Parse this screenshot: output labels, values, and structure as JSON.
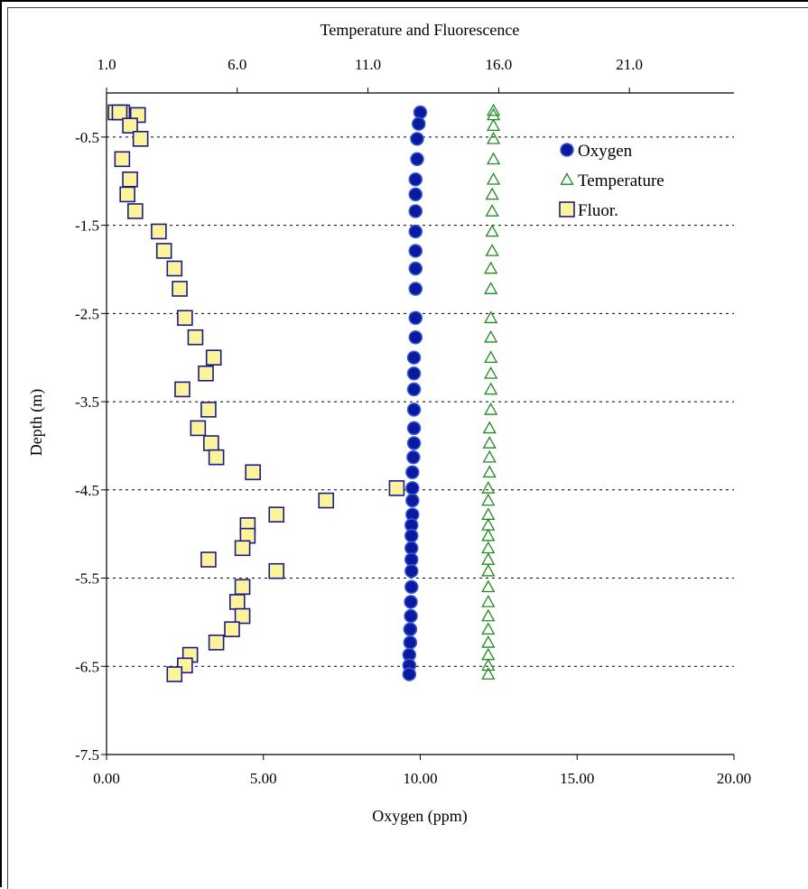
{
  "chart_data": {
    "type": "scatter",
    "title": "",
    "top_axis_label": "Temperature and Fluorescence",
    "xlabel": "Oxygen (ppm)",
    "ylabel": "Depth (m)",
    "xlim": [
      0,
      20
    ],
    "top_xlim": [
      1,
      25
    ],
    "ylim": [
      -7.5,
      0
    ],
    "x_ticks": [
      "0.00",
      "5.00",
      "10.00",
      "15.00",
      "20.00"
    ],
    "top_x_ticks": [
      "1.0",
      "6.0",
      "11.0",
      "16.0",
      "21.0"
    ],
    "y_ticks": [
      "-0.5",
      "-1.5",
      "-2.5",
      "-3.5",
      "-4.5",
      "-5.5",
      "-6.5",
      "-7.5"
    ],
    "gridlines": "horizontal dotted at -0.5, -1.5, -2.5, -3.5, -4.5, -5.5, -6.5",
    "legend_position": "top-right",
    "colors": {
      "oxygen": "#0a1a9e",
      "temperature": "#1e8a1e",
      "fluor_fill": "#fbf49a",
      "fluor_edge": "#1a1a8c"
    },
    "series": [
      {
        "name": "Oxygen",
        "axis": "bottom",
        "marker": "circle",
        "points": [
          [
            10.0,
            -0.22
          ],
          [
            9.95,
            -0.35
          ],
          [
            9.9,
            -0.52
          ],
          [
            9.9,
            -0.75
          ],
          [
            9.85,
            -0.98
          ],
          [
            9.85,
            -1.15
          ],
          [
            9.85,
            -1.34
          ],
          [
            9.85,
            -1.57
          ],
          [
            9.85,
            -1.79
          ],
          [
            9.85,
            -1.99
          ],
          [
            9.85,
            -2.22
          ],
          [
            9.85,
            -2.55
          ],
          [
            9.85,
            -2.77
          ],
          [
            9.8,
            -3.0
          ],
          [
            9.8,
            -3.18
          ],
          [
            9.8,
            -3.36
          ],
          [
            9.8,
            -3.59
          ],
          [
            9.8,
            -3.8
          ],
          [
            9.8,
            -3.97
          ],
          [
            9.78,
            -4.13
          ],
          [
            9.75,
            -4.3
          ],
          [
            9.75,
            -4.48
          ],
          [
            9.75,
            -4.62
          ],
          [
            9.75,
            -4.78
          ],
          [
            9.72,
            -4.9
          ],
          [
            9.72,
            -5.02
          ],
          [
            9.72,
            -5.16
          ],
          [
            9.72,
            -5.29
          ],
          [
            9.72,
            -5.42
          ],
          [
            9.72,
            -5.6
          ],
          [
            9.7,
            -5.77
          ],
          [
            9.7,
            -5.93
          ],
          [
            9.68,
            -6.08
          ],
          [
            9.68,
            -6.23
          ],
          [
            9.65,
            -6.37
          ],
          [
            9.65,
            -6.49
          ],
          [
            9.65,
            -6.59
          ]
        ]
      },
      {
        "name": "Temperature",
        "axis": "top",
        "marker": "triangle",
        "points": [
          [
            15.8,
            -0.2
          ],
          [
            15.8,
            -0.25
          ],
          [
            15.8,
            -0.37
          ],
          [
            15.8,
            -0.52
          ],
          [
            15.8,
            -0.75
          ],
          [
            15.8,
            -0.98
          ],
          [
            15.75,
            -1.15
          ],
          [
            15.75,
            -1.34
          ],
          [
            15.75,
            -1.57
          ],
          [
            15.75,
            -1.79
          ],
          [
            15.7,
            -1.99
          ],
          [
            15.7,
            -2.22
          ],
          [
            15.7,
            -2.55
          ],
          [
            15.7,
            -2.77
          ],
          [
            15.7,
            -3.0
          ],
          [
            15.7,
            -3.18
          ],
          [
            15.7,
            -3.36
          ],
          [
            15.7,
            -3.59
          ],
          [
            15.65,
            -3.8
          ],
          [
            15.65,
            -3.97
          ],
          [
            15.65,
            -4.13
          ],
          [
            15.65,
            -4.3
          ],
          [
            15.6,
            -4.48
          ],
          [
            15.6,
            -4.62
          ],
          [
            15.6,
            -4.78
          ],
          [
            15.6,
            -4.9
          ],
          [
            15.6,
            -5.02
          ],
          [
            15.6,
            -5.16
          ],
          [
            15.6,
            -5.29
          ],
          [
            15.6,
            -5.42
          ],
          [
            15.6,
            -5.6
          ],
          [
            15.6,
            -5.77
          ],
          [
            15.6,
            -5.93
          ],
          [
            15.6,
            -6.08
          ],
          [
            15.6,
            -6.23
          ],
          [
            15.6,
            -6.37
          ],
          [
            15.6,
            -6.49
          ],
          [
            15.6,
            -6.59
          ]
        ]
      },
      {
        "name": "Fluor.",
        "axis": "top",
        "marker": "square",
        "points": [
          [
            1.35,
            -0.22
          ],
          [
            1.6,
            -0.22
          ],
          [
            1.5,
            -0.22
          ],
          [
            2.2,
            -0.25
          ],
          [
            1.9,
            -0.37
          ],
          [
            2.3,
            -0.52
          ],
          [
            1.6,
            -0.75
          ],
          [
            1.9,
            -0.98
          ],
          [
            1.8,
            -1.15
          ],
          [
            2.1,
            -1.34
          ],
          [
            3.0,
            -1.57
          ],
          [
            3.2,
            -1.79
          ],
          [
            3.6,
            -1.99
          ],
          [
            3.8,
            -2.22
          ],
          [
            4.0,
            -2.55
          ],
          [
            4.4,
            -2.77
          ],
          [
            5.1,
            -3.0
          ],
          [
            4.8,
            -3.18
          ],
          [
            3.9,
            -3.36
          ],
          [
            4.9,
            -3.59
          ],
          [
            4.5,
            -3.8
          ],
          [
            5.0,
            -3.97
          ],
          [
            5.2,
            -4.13
          ],
          [
            6.6,
            -4.3
          ],
          [
            12.1,
            -4.48
          ],
          [
            9.4,
            -4.62
          ],
          [
            7.5,
            -4.78
          ],
          [
            6.4,
            -4.9
          ],
          [
            6.4,
            -5.02
          ],
          [
            6.2,
            -5.16
          ],
          [
            4.9,
            -5.29
          ],
          [
            7.5,
            -5.42
          ],
          [
            6.2,
            -5.6
          ],
          [
            6.0,
            -5.77
          ],
          [
            6.2,
            -5.93
          ],
          [
            5.8,
            -6.08
          ],
          [
            5.2,
            -6.23
          ],
          [
            4.2,
            -6.37
          ],
          [
            4.0,
            -6.49
          ],
          [
            3.6,
            -6.59
          ]
        ]
      }
    ]
  }
}
